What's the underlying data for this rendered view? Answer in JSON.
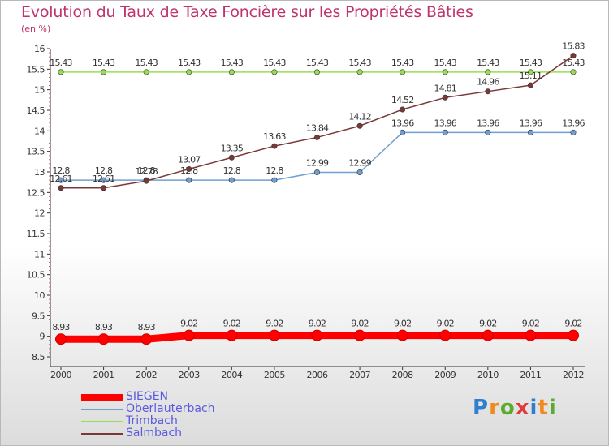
{
  "title": "Evolution du Taux de Taxe Foncière sur les Propriétés Bâties",
  "unit_label": "(en %)",
  "logo": {
    "text": "Proxiti",
    "colors": [
      "#2f7fd0",
      "#f08a1d",
      "#5aab2e",
      "#e23b3b",
      "#2f7fd0",
      "#f08a1d",
      "#5aab2e"
    ]
  },
  "chart_data": {
    "type": "line",
    "title": "Evolution du Taux de Taxe Foncière sur les Propriétés Bâties",
    "ylabel": "(en %)",
    "categories": [
      "2000",
      "2001",
      "2002",
      "2003",
      "2004",
      "2005",
      "2006",
      "2007",
      "2008",
      "2009",
      "2010",
      "2011",
      "2012"
    ],
    "ylim": [
      8.5,
      16
    ],
    "yticks": [
      "8.5",
      "9",
      "9.5",
      "10",
      "10.5",
      "11",
      "11.5",
      "12",
      "12.5",
      "13",
      "13.5",
      "14",
      "14.5",
      "15",
      "15.5",
      "16"
    ],
    "grid": false,
    "legend_position": "bottom-left",
    "series": [
      {
        "name": "SIEGEN",
        "color": "#ff0000",
        "emphasis": true,
        "values": [
          8.93,
          8.93,
          8.93,
          9.02,
          9.02,
          9.02,
          9.02,
          9.02,
          9.02,
          9.02,
          9.02,
          9.02,
          9.02
        ],
        "labels": [
          "8.93",
          "8.93",
          "8.93",
          "9.02",
          "9.02",
          "9.02",
          "9.02",
          "9.02",
          "9.02",
          "9.02",
          "9.02",
          "9.02",
          "9.02"
        ]
      },
      {
        "name": "Oberlauterbach",
        "color": "#6fa0d0",
        "values": [
          12.8,
          12.8,
          12.8,
          12.8,
          12.8,
          12.8,
          12.99,
          12.99,
          13.96,
          13.96,
          13.96,
          13.96,
          13.96
        ],
        "labels": [
          "12.8",
          "12.8",
          "12.8",
          "12.8",
          "12.8",
          "12.8",
          "12.99",
          "12.99",
          "13.96",
          "13.96",
          "13.96",
          "13.96",
          "13.96"
        ]
      },
      {
        "name": "Trimbach",
        "color": "#99dd55",
        "values": [
          15.43,
          15.43,
          15.43,
          15.43,
          15.43,
          15.43,
          15.43,
          15.43,
          15.43,
          15.43,
          15.43,
          15.43,
          15.43
        ],
        "labels": [
          "15.43",
          "15.43",
          "15.43",
          "15.43",
          "15.43",
          "15.43",
          "15.43",
          "15.43",
          "15.43",
          "15.43",
          "15.43",
          "15.43",
          "15.43"
        ]
      },
      {
        "name": "Salmbach",
        "color": "#7a3838",
        "values": [
          12.61,
          12.61,
          12.78,
          13.07,
          13.35,
          13.63,
          13.84,
          14.12,
          14.52,
          14.81,
          14.96,
          15.11,
          15.83
        ],
        "labels": [
          "12.61",
          "12.61",
          "12.78",
          "13.07",
          "13.35",
          "13.63",
          "13.84",
          "14.12",
          "14.52",
          "14.81",
          "14.96",
          "15.11",
          "15.83"
        ]
      }
    ]
  }
}
